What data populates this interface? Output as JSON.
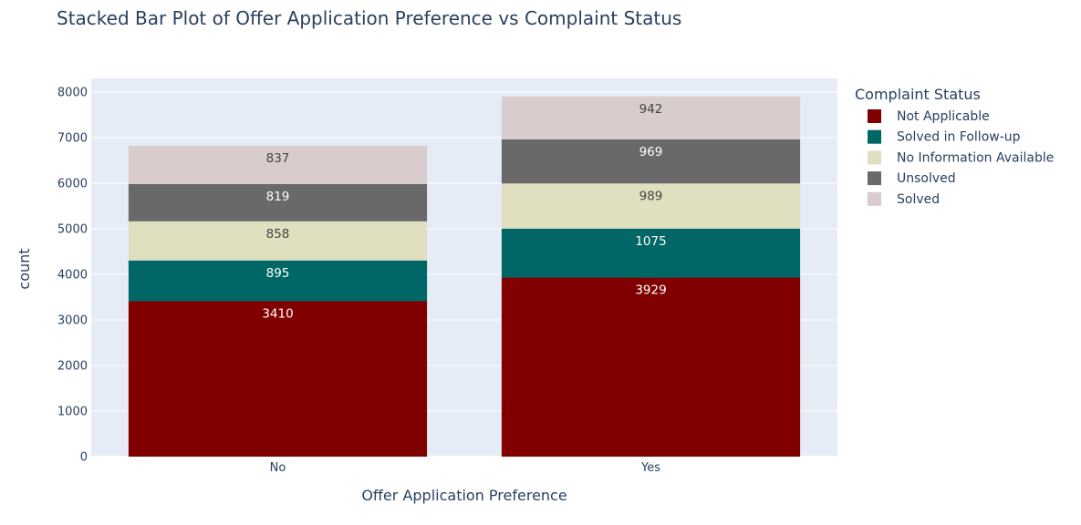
{
  "chart_data": {
    "type": "bar",
    "stacked": true,
    "title": "Stacked Bar Plot of Offer Application Preference vs Complaint Status",
    "xlabel": "Offer Application Preference",
    "ylabel": "count",
    "categories": [
      "No",
      "Yes"
    ],
    "ylim": [
      0,
      8300
    ],
    "y_ticks": [
      0,
      1000,
      2000,
      3000,
      4000,
      5000,
      6000,
      7000,
      8000
    ],
    "grid": true,
    "legend_title": "Complaint Status",
    "legend_position": "right",
    "series": [
      {
        "name": "Not Applicable",
        "values": [
          3410,
          3929
        ],
        "color": "#800000",
        "label_color": "#ffffff"
      },
      {
        "name": "Solved in Follow-up",
        "values": [
          895,
          1075
        ],
        "color": "#006666",
        "label_color": "#ffffff"
      },
      {
        "name": "No Information Available",
        "values": [
          858,
          989
        ],
        "color": "#e0e0c0",
        "label_color": "#444444"
      },
      {
        "name": "Unsolved",
        "values": [
          819,
          969
        ],
        "color": "#696969",
        "label_color": "#ffffff"
      },
      {
        "name": "Solved",
        "values": [
          837,
          942
        ],
        "color": "#d8cccc",
        "label_color": "#444444"
      }
    ],
    "plot_background": "#e5ecf6"
  }
}
